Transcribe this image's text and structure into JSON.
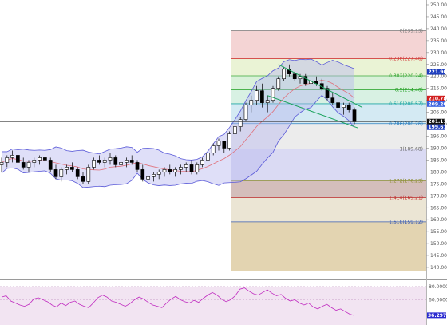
{
  "chart_data": [
    {
      "type": "candlestick",
      "title": "",
      "ylim": [
        136,
        251
      ],
      "y_ticks": [
        "140.00",
        "145.00",
        "150.00",
        "155.00",
        "160.00",
        "165.00",
        "170.00",
        "175.00",
        "180.00",
        "185.00",
        "190.00",
        "195.00",
        "200.00",
        "205.00",
        "210.00",
        "215.00",
        "220.00",
        "225.00",
        "230.00",
        "235.00",
        "240.00",
        "245.00",
        "250.00"
      ],
      "ohlc": [
        [
          183,
          186,
          180,
          184
        ],
        [
          184,
          187,
          182,
          186
        ],
        [
          186,
          189,
          184,
          187
        ],
        [
          187,
          188,
          183,
          184
        ],
        [
          184,
          186,
          181,
          182
        ],
        [
          182,
          185,
          180,
          184
        ],
        [
          184,
          186,
          182,
          185
        ],
        [
          185,
          187,
          183,
          186
        ],
        [
          186,
          188,
          184,
          185
        ],
        [
          185,
          186,
          180,
          181
        ],
        [
          181,
          183,
          177,
          178
        ],
        [
          178,
          182,
          176,
          181
        ],
        [
          181,
          183,
          179,
          182
        ],
        [
          182,
          184,
          180,
          181
        ],
        [
          181,
          182,
          177,
          178
        ],
        [
          178,
          180,
          175,
          176
        ],
        [
          176,
          183,
          175,
          182
        ],
        [
          182,
          186,
          181,
          185
        ],
        [
          185,
          187,
          183,
          184
        ],
        [
          184,
          186,
          182,
          185
        ],
        [
          185,
          188,
          183,
          186
        ],
        [
          186,
          187,
          182,
          183
        ],
        [
          183,
          185,
          181,
          184
        ],
        [
          184,
          186,
          182,
          185
        ],
        [
          185,
          187,
          183,
          184
        ],
        [
          184,
          185,
          180,
          181
        ],
        [
          181,
          183,
          176,
          177
        ],
        [
          177,
          179,
          175,
          178
        ],
        [
          178,
          180,
          176,
          179
        ],
        [
          179,
          181,
          177,
          180
        ],
        [
          180,
          182,
          178,
          181
        ],
        [
          181,
          183,
          179,
          180
        ],
        [
          180,
          182,
          178,
          181
        ],
        [
          181,
          183,
          179,
          182
        ],
        [
          182,
          184,
          180,
          183
        ],
        [
          183,
          185,
          179,
          180
        ],
        [
          180,
          184,
          179,
          183
        ],
        [
          183,
          186,
          182,
          185
        ],
        [
          185,
          189,
          184,
          188
        ],
        [
          188,
          192,
          187,
          191
        ],
        [
          191,
          194,
          189,
          193
        ],
        [
          193,
          192,
          188,
          190
        ],
        [
          190,
          197,
          189,
          196
        ],
        [
          196,
          200,
          195,
          199
        ],
        [
          199,
          203,
          197,
          202
        ],
        [
          202,
          209,
          201,
          208
        ],
        [
          208,
          212,
          205,
          210
        ],
        [
          210,
          216,
          208,
          214
        ],
        [
          214,
          217,
          207,
          209
        ],
        [
          209,
          212,
          205,
          210
        ],
        [
          210,
          216,
          209,
          215
        ],
        [
          215,
          220,
          214,
          219
        ],
        [
          219,
          224,
          218,
          223
        ],
        [
          223,
          225,
          220,
          221
        ],
        [
          221,
          222,
          218,
          219
        ],
        [
          219,
          221,
          217,
          220
        ],
        [
          220,
          221,
          216,
          217
        ],
        [
          217,
          219,
          215,
          218
        ],
        [
          218,
          220,
          216,
          217
        ],
        [
          217,
          219,
          214,
          215
        ],
        [
          215,
          216,
          210,
          211
        ],
        [
          211,
          213,
          208,
          209
        ],
        [
          209,
          211,
          206,
          207
        ],
        [
          207,
          209,
          204,
          208
        ],
        [
          208,
          209,
          205,
          206
        ],
        [
          206,
          207,
          200,
          201
        ]
      ],
      "overlays": [
        "Bollinger Bands",
        "Moving Average"
      ],
      "price_tags": [
        {
          "label": "221.90",
          "value": 221.9,
          "color": "#1f3fbf"
        },
        {
          "label": "210.78",
          "value": 210.78,
          "color": "#d11f1f"
        },
        {
          "label": "209.20",
          "value": 209.2,
          "color": "#3a62e0"
        },
        {
          "label": "201.11",
          "value": 201.11,
          "color": "#111111"
        },
        {
          "label": "199.67",
          "value": 199.67,
          "color": "#1f3fbf"
        }
      ],
      "fibonacci_retracement": [
        {
          "label": "0(239.13)",
          "value": 239.13,
          "color": "#777777"
        },
        {
          "label": "0.236(227.46)",
          "value": 227.46,
          "color": "#d33a3a"
        },
        {
          "label": "0.382(220.24)",
          "value": 220.24,
          "color": "#3aa83a"
        },
        {
          "label": "0.5(214.40)",
          "value": 214.4,
          "color": "#1e9e1e"
        },
        {
          "label": "0.618(208.57)",
          "value": 208.57,
          "color": "#1fa6a6"
        },
        {
          "label": "0.786(200.26)",
          "value": 200.26,
          "color": "#2a7fc0"
        },
        {
          "label": "1(189.68)",
          "value": 189.68,
          "color": "#666666"
        },
        {
          "label": "1.272(176.23)",
          "value": 176.23,
          "color": "#8a8a2a"
        },
        {
          "label": "1.414(169.21)",
          "value": 169.21,
          "color": "#c03030"
        },
        {
          "label": "1.618(159.12)",
          "value": 159.12,
          "color": "#3a5ab0"
        }
      ],
      "crosshair": {
        "price": 201.11
      },
      "grid": false
    },
    {
      "type": "line",
      "title": "",
      "ylim": [
        24,
        86
      ],
      "y_ticks": [
        "80.0000",
        "60.0000"
      ],
      "value_tag": {
        "label": "36.2979",
        "value": 36.2979,
        "color": "#2b2bd0"
      },
      "values": [
        64,
        66,
        58,
        55,
        52,
        50,
        53,
        61,
        63,
        60,
        57,
        52,
        49,
        55,
        51,
        56,
        58,
        53,
        50,
        48,
        55,
        63,
        67,
        64,
        58,
        56,
        53,
        50,
        54,
        60,
        64,
        61,
        56,
        52,
        50,
        48,
        55,
        61,
        65,
        60,
        57,
        55,
        59,
        56,
        62,
        67,
        71,
        67,
        61,
        57,
        60,
        66,
        76,
        78,
        73,
        69,
        67,
        71,
        75,
        70,
        66,
        68,
        62,
        58,
        60,
        55,
        52,
        55,
        49,
        46,
        50,
        53,
        48,
        44,
        46,
        42,
        38,
        36
      ]
    }
  ]
}
